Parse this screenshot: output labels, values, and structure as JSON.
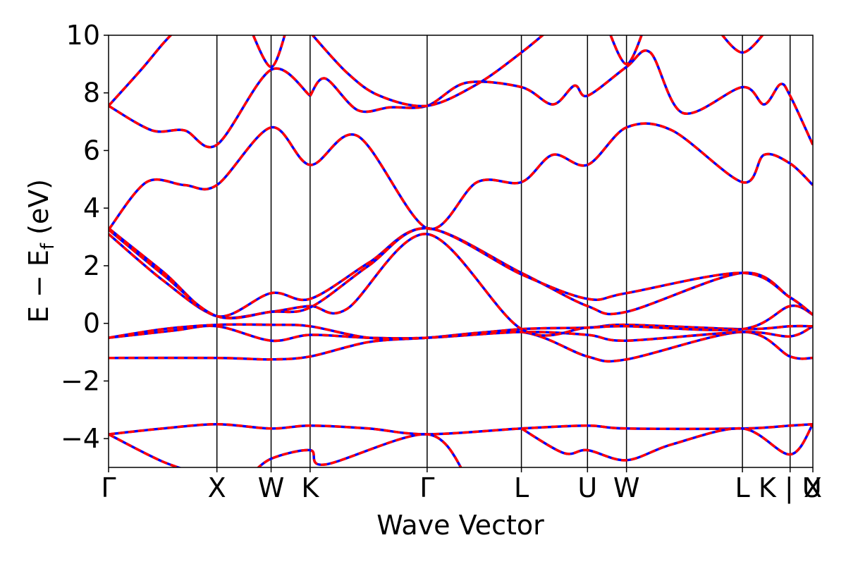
{
  "chart_data": {
    "type": "line",
    "title": "",
    "xlabel": "Wave Vector",
    "ylabel": {
      "prefix": "E − E",
      "subscript": "f",
      "suffix": " (eV)"
    },
    "ylim": [
      -5,
      10
    ],
    "xlim": [
      0,
      6.5
    ],
    "yticks": [
      {
        "value": 10,
        "label": "10"
      },
      {
        "value": 8,
        "label": "8"
      },
      {
        "value": 6,
        "label": "6"
      },
      {
        "value": 4,
        "label": "4"
      },
      {
        "value": 2,
        "label": "2"
      },
      {
        "value": 0,
        "label": "0"
      },
      {
        "value": -2,
        "label": "−2"
      },
      {
        "value": -4,
        "label": "−4"
      }
    ],
    "kpoints": [
      {
        "label": "Γ",
        "x": 0.0
      },
      {
        "label": "X",
        "x": 1.0
      },
      {
        "label": "W",
        "x": 1.5
      },
      {
        "label": "K",
        "x": 1.86
      },
      {
        "label": "Γ",
        "x": 2.94
      },
      {
        "label": "L",
        "x": 3.81
      },
      {
        "label": "U",
        "x": 4.42
      },
      {
        "label": "W",
        "x": 4.78
      },
      {
        "label": "L",
        "x": 5.85
      },
      {
        "label": "K | U",
        "x": 6.29
      },
      {
        "label": "X",
        "x": 6.5
      }
    ],
    "line_colors": {
      "band": "#ff0000",
      "overlay": "#0000ff",
      "kline": "#000000"
    },
    "series": [
      {
        "x": [
          0,
          0.5,
          1.0,
          1.5,
          1.86,
          2.4,
          2.94,
          3.81,
          4.42,
          4.78,
          5.85,
          6.29,
          6.5
        ],
        "y": [
          -3.85,
          -3.65,
          -3.5,
          -3.65,
          -3.55,
          -3.65,
          -3.85,
          -3.65,
          -3.55,
          -3.65,
          -3.65,
          -3.55,
          -3.5
        ]
      },
      {
        "x": [
          0,
          1.0,
          1.5,
          1.86,
          2.4,
          2.94,
          3.81,
          4.42,
          4.78,
          5.85,
          6.29,
          6.5
        ],
        "y": [
          -1.2,
          -1.2,
          -1.25,
          -1.15,
          -0.65,
          -0.5,
          -0.3,
          -1.15,
          -1.25,
          -0.3,
          -1.15,
          -1.2
        ]
      },
      {
        "x": [
          0,
          0.6,
          1.0,
          1.5,
          1.86,
          2.4,
          2.94,
          3.81,
          4.42,
          4.78,
          5.85,
          6.29,
          6.5
        ],
        "y": [
          -0.5,
          -0.25,
          -0.1,
          -0.6,
          -0.4,
          -0.5,
          -0.5,
          -0.3,
          -0.4,
          -0.6,
          -0.3,
          -0.45,
          -0.1
        ]
      },
      {
        "x": [
          0,
          0.5,
          1.0,
          1.5,
          1.86,
          2.4,
          2.94,
          3.81,
          4.42,
          4.78,
          5.85,
          6.29,
          6.5
        ],
        "y": [
          -0.5,
          -0.2,
          -0.05,
          -0.05,
          -0.1,
          -0.5,
          -0.5,
          -0.2,
          -0.15,
          -0.05,
          -0.2,
          -0.1,
          -0.1
        ]
      },
      {
        "x": [
          0,
          0.5,
          1.0,
          1.5,
          1.86,
          2.2,
          2.94,
          3.81,
          4.42,
          4.78,
          5.85,
          6.29,
          6.5
        ],
        "y": [
          3.1,
          1.5,
          0.25,
          0.4,
          0.6,
          0.5,
          3.1,
          -0.2,
          -0.15,
          -0.1,
          -0.2,
          0.6,
          0.3
        ]
      },
      {
        "x": [
          0,
          0.5,
          1.0,
          1.5,
          1.86,
          2.4,
          2.94,
          3.81,
          4.42,
          4.78,
          5.85,
          6.29,
          6.5
        ],
        "y": [
          3.3,
          1.8,
          0.25,
          1.05,
          0.85,
          2.1,
          3.3,
          1.75,
          0.6,
          0.4,
          1.75,
          0.9,
          0.3
        ]
      },
      {
        "x": [
          0,
          0.5,
          1.0,
          1.5,
          1.86,
          2.4,
          2.94,
          3.81,
          4.42,
          4.78,
          5.85,
          6.29,
          6.5
        ],
        "y": [
          3.25,
          1.7,
          0.25,
          0.4,
          0.55,
          2.0,
          3.3,
          1.7,
          0.85,
          1.05,
          1.75,
          0.9,
          0.3
        ]
      },
      {
        "x": [
          0,
          0.35,
          0.7,
          1.0,
          1.5,
          1.86,
          2.3,
          2.94,
          3.4,
          3.81,
          4.1,
          4.42,
          4.78,
          5.2,
          5.85,
          6.05,
          6.29,
          6.5
        ],
        "y": [
          3.25,
          4.9,
          4.8,
          4.8,
          6.8,
          5.5,
          6.5,
          3.3,
          4.9,
          4.9,
          5.85,
          5.5,
          6.8,
          6.7,
          4.9,
          5.85,
          5.55,
          4.8
        ]
      },
      {
        "x": [
          0,
          0.4,
          0.7,
          1.0,
          1.5,
          1.86
        ],
        "y": [
          7.55,
          6.7,
          6.7,
          6.2,
          8.8,
          7.9
        ]
      },
      {
        "x": [
          1.86,
          2.0,
          2.3,
          2.6,
          2.94,
          3.3,
          3.81,
          4.1,
          4.3,
          4.42,
          4.78,
          5.0,
          5.3,
          5.85,
          6.05,
          6.2,
          6.29,
          6.5
        ],
        "y": [
          7.9,
          8.5,
          7.4,
          7.5,
          7.55,
          8.35,
          8.2,
          7.6,
          8.25,
          7.9,
          8.9,
          9.4,
          7.3,
          8.2,
          7.6,
          8.3,
          7.9,
          6.2
        ]
      },
      {
        "x": [
          0,
          0.3,
          0.5,
          0.65
        ],
        "y": [
          7.55,
          8.8,
          9.7,
          10.3
        ]
      },
      {
        "x": [
          1.3,
          1.5,
          1.65
        ],
        "y": [
          10.3,
          8.9,
          10.3
        ]
      },
      {
        "x": [
          1.86,
          2.2,
          2.5,
          2.94,
          3.4,
          3.81,
          4.1
        ],
        "y": [
          10.1,
          8.7,
          7.9,
          7.55,
          8.3,
          9.4,
          10.3
        ]
      },
      {
        "x": [
          4.6,
          4.78,
          4.95
        ],
        "y": [
          10.3,
          9.0,
          10.3
        ]
      },
      {
        "x": [
          5.6,
          5.85,
          6.1
        ],
        "y": [
          10.3,
          9.4,
          10.3
        ]
      },
      {
        "x": [
          0,
          0.5,
          0.9
        ],
        "y": [
          -3.85,
          -4.8,
          -5.3
        ]
      },
      {
        "x": [
          1.3,
          1.5,
          1.86,
          2.0,
          2.94,
          3.3
        ],
        "y": [
          -5.3,
          -4.7,
          -4.4,
          -4.9,
          -3.85,
          -5.3
        ]
      },
      {
        "x": [
          3.81,
          4.2,
          4.42,
          4.78,
          5.2,
          5.85,
          6.29,
          6.5
        ],
        "y": [
          -3.65,
          -4.5,
          -4.4,
          -4.75,
          -4.2,
          -3.65,
          -4.55,
          -3.5
        ]
      }
    ]
  }
}
